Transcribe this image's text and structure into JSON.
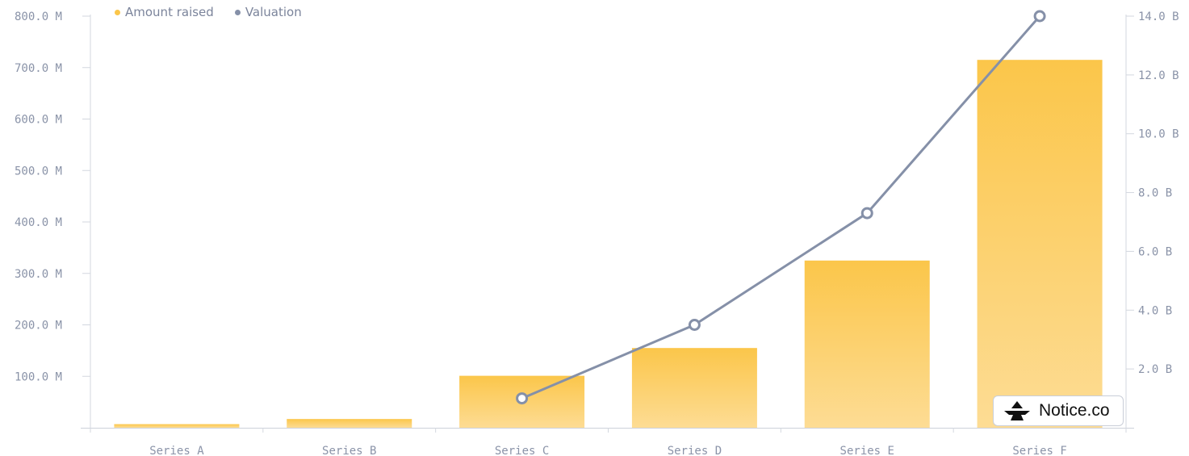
{
  "legend": {
    "amount_label": "Amount raised",
    "valuation_label": "Valuation",
    "amount_color": "#fbc64a",
    "valuation_color": "#8590a8"
  },
  "badge": {
    "text": "Notice.co",
    "icon": "notice-logo-icon"
  },
  "chart_data": {
    "type": "bar",
    "categories": [
      "Series A",
      "Series B",
      "Series C",
      "Series D",
      "Series E",
      "Series F"
    ],
    "series": [
      {
        "name": "Amount raised",
        "type": "bar",
        "axis": "left",
        "unit": "M",
        "values": [
          7,
          17,
          101,
          155,
          325,
          715
        ]
      },
      {
        "name": "Valuation",
        "type": "line",
        "axis": "right",
        "unit": "B",
        "values": [
          null,
          null,
          1.0,
          3.5,
          7.3,
          14.0
        ]
      }
    ],
    "y_left": {
      "min": 0,
      "max": 800,
      "ticks": [
        "100.0 M",
        "200.0 M",
        "300.0 M",
        "400.0 M",
        "500.0 M",
        "600.0 M",
        "700.0 M",
        "800.0 M"
      ]
    },
    "y_right": {
      "min": 0,
      "max": 14,
      "ticks": [
        "2.0 B",
        "4.0 B",
        "6.0 B",
        "8.0 B",
        "10.0 B",
        "12.0 B",
        "14.0 B"
      ]
    },
    "grid": false,
    "legend_position": "top-left"
  }
}
